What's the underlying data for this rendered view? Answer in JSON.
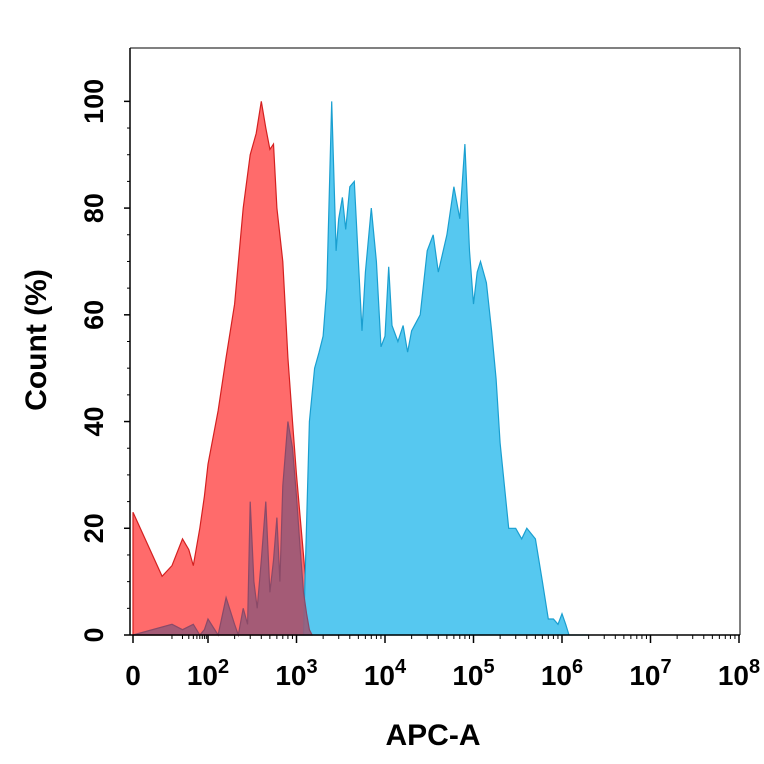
{
  "chart_data": {
    "type": "area",
    "xlabel": "APC-A",
    "ylabel": "Count  (%)",
    "x_scale": "log",
    "xlim": [
      0,
      100000000
    ],
    "ylim": [
      0,
      110
    ],
    "grid": false,
    "x_ticks": [
      {
        "value": 0,
        "label": "0"
      },
      {
        "value": 100,
        "label": "10",
        "exp": "2"
      },
      {
        "value": 1000,
        "label": "10",
        "exp": "3"
      },
      {
        "value": 10000,
        "label": "10",
        "exp": "4"
      },
      {
        "value": 100000,
        "label": "10",
        "exp": "5"
      },
      {
        "value": 1000000,
        "label": "10",
        "exp": "6"
      },
      {
        "value": 10000000,
        "label": "10",
        "exp": "7"
      },
      {
        "value": 100000000,
        "label": "10",
        "exp": "8"
      }
    ],
    "y_ticks": [
      0,
      20,
      40,
      60,
      80,
      100
    ],
    "series": [
      {
        "fill": "#ff6b6b",
        "stroke": "#d42020",
        "x": [
          0,
          5,
          10,
          20,
          30,
          40,
          60,
          80,
          100,
          130,
          160,
          200,
          250,
          300,
          350,
          400,
          450,
          500,
          550,
          600,
          700,
          800,
          900,
          1000,
          1100,
          1200,
          1300,
          1400,
          1500,
          1600,
          1700,
          1800,
          2000,
          2500,
          3000,
          4000,
          5000,
          6000,
          7000
        ],
        "y": [
          23,
          11,
          13,
          18,
          16,
          13,
          20,
          26,
          32,
          42,
          52,
          62,
          80,
          90,
          94,
          100,
          95,
          91,
          92,
          80,
          70,
          52,
          40,
          30,
          22,
          15,
          8,
          4,
          1,
          0,
          0,
          0,
          0,
          0,
          1,
          0,
          0,
          1,
          0
        ]
      },
      {
        "fill": "#56c8f0",
        "stroke": "#1a9fd0",
        "x": [
          1000,
          1200,
          1400,
          1600,
          1800,
          2000,
          2200,
          2500,
          2800,
          3000,
          3300,
          3600,
          4000,
          4500,
          5000,
          5500,
          6000,
          7000,
          8000,
          9000,
          10000,
          11000,
          12000,
          14000,
          16000,
          18000,
          20000,
          25000,
          30000,
          35000,
          40000,
          50000,
          60000,
          70000,
          80000,
          90000,
          100000,
          110000,
          120000,
          140000,
          160000,
          180000,
          200000,
          250000,
          300000,
          350000,
          400000,
          500000,
          600000,
          700000,
          800000,
          900000,
          1000000,
          1100000,
          1200000,
          1400000,
          1600000,
          1800000,
          2000000
        ],
        "y": [
          0,
          0,
          40,
          50,
          53,
          56,
          65,
          100,
          72,
          78,
          82,
          76,
          84,
          85,
          70,
          57,
          68,
          80,
          70,
          54,
          56,
          69,
          58,
          55,
          58,
          53,
          57,
          60,
          72,
          75,
          68,
          75,
          84,
          78,
          92,
          72,
          62,
          68,
          70,
          66,
          57,
          48,
          36,
          20,
          20,
          18,
          20,
          18,
          10,
          3,
          3,
          2,
          4,
          2,
          0,
          0,
          0,
          0,
          0
        ]
      },
      {
        "fill": "#9a5a78",
        "stroke": "#8a4a68",
        "x": [
          0,
          10,
          20,
          40,
          60,
          80,
          100,
          130,
          160,
          200,
          220,
          250,
          280,
          300,
          330,
          360,
          400,
          450,
          500,
          550,
          600,
          650,
          700,
          800,
          900,
          1000,
          1100,
          1200,
          1300,
          1400,
          1500
        ],
        "y": [
          0,
          2,
          1,
          2,
          0,
          1,
          3,
          0,
          7,
          2,
          0,
          5,
          2,
          25,
          10,
          5,
          14,
          25,
          8,
          14,
          22,
          10,
          28,
          40,
          35,
          26,
          16,
          8,
          4,
          1,
          0
        ]
      }
    ]
  }
}
